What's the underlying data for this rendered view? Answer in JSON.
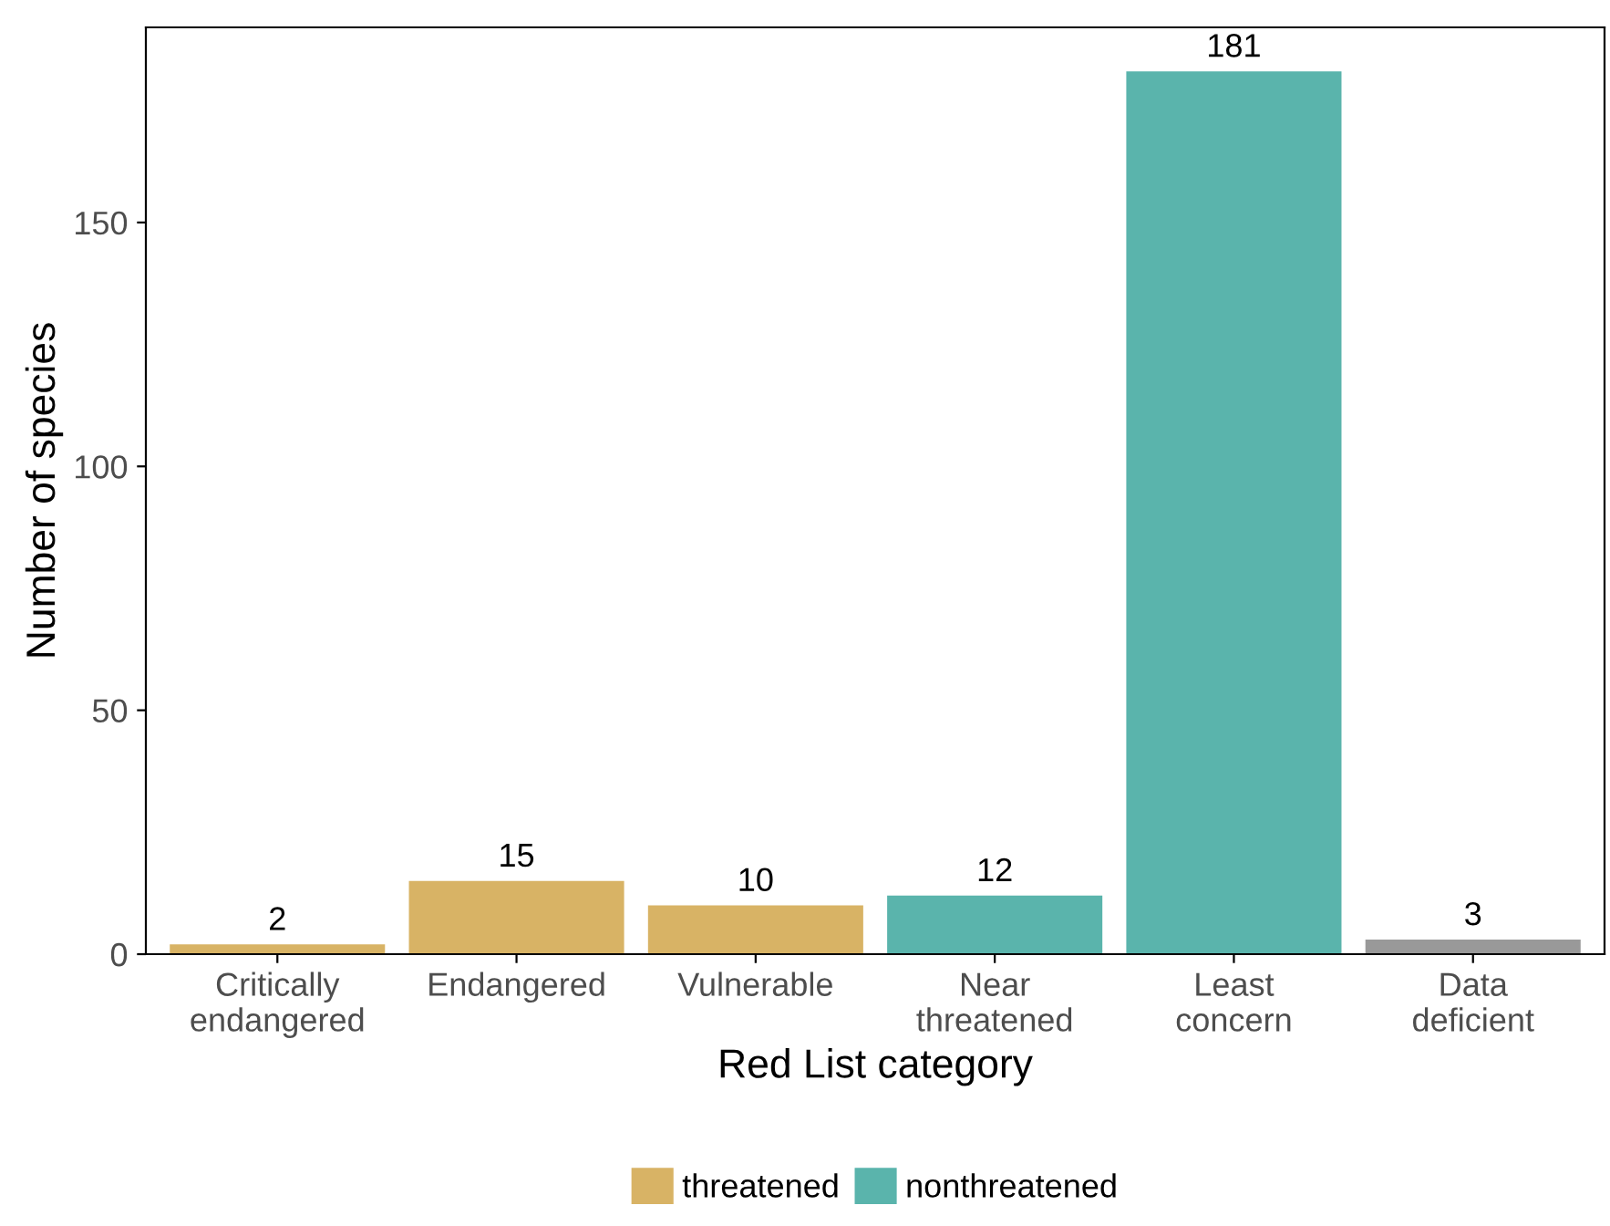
{
  "chart_data": {
    "type": "bar",
    "xlabel": "Red List category",
    "ylabel": "Number of species",
    "categories": [
      "Critically\nendangered",
      "Endangered",
      "Vulnerable",
      "Near\nthreatened",
      "Least\nconcern",
      "Data\ndeficient"
    ],
    "series": [
      {
        "name": "threatened",
        "color": "#d8b365",
        "values": [
          2,
          15,
          10,
          null,
          null,
          null
        ]
      },
      {
        "name": "nonthreatened",
        "color": "#5ab4ac",
        "values": [
          null,
          null,
          null,
          12,
          181,
          null
        ]
      },
      {
        "color": "#999999",
        "values": [
          null,
          null,
          null,
          null,
          null,
          3
        ]
      }
    ],
    "ylim": [
      0,
      190
    ],
    "yticks": [
      0,
      50,
      100,
      150
    ],
    "grid": false,
    "legend": "bottom",
    "data_labels": true
  }
}
